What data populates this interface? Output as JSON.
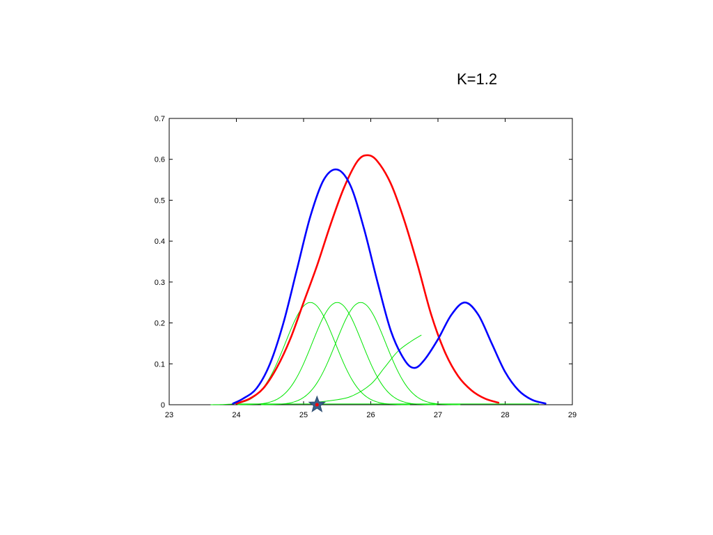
{
  "slide": {
    "title": "K=1.2"
  },
  "colors": {
    "red": "#ff0000",
    "blue": "#0000ff",
    "green": "#00e600",
    "star": "#3a5f8a",
    "axes": "#000000"
  },
  "chart_data": {
    "type": "line",
    "title": "",
    "xlabel": "",
    "ylabel": "",
    "xlim": [
      23,
      29
    ],
    "ylim": [
      0,
      0.7
    ],
    "grid": false,
    "x_ticks": [
      "23",
      "24",
      "25",
      "26",
      "27",
      "28",
      "29"
    ],
    "y_ticks": [
      "0",
      "0.1",
      "0.2",
      "0.3",
      "0.4",
      "0.5",
      "0.6",
      "0.7"
    ],
    "series": [
      {
        "color": "red",
        "stroke": "thick",
        "points": [
          [
            24.0,
            0.003
          ],
          [
            24.2,
            0.015
          ],
          [
            24.4,
            0.04
          ],
          [
            24.6,
            0.09
          ],
          [
            24.8,
            0.16
          ],
          [
            25.0,
            0.25
          ],
          [
            25.2,
            0.34
          ],
          [
            25.4,
            0.44
          ],
          [
            25.6,
            0.53
          ],
          [
            25.8,
            0.595
          ],
          [
            25.95,
            0.61
          ],
          [
            26.1,
            0.595
          ],
          [
            26.3,
            0.54
          ],
          [
            26.5,
            0.45
          ],
          [
            26.7,
            0.34
          ],
          [
            26.9,
            0.22
          ],
          [
            27.1,
            0.13
          ],
          [
            27.3,
            0.07
          ],
          [
            27.5,
            0.035
          ],
          [
            27.7,
            0.015
          ],
          [
            27.9,
            0.005
          ]
        ]
      },
      {
        "color": "blue",
        "stroke": "thick",
        "points": [
          [
            23.95,
            0.003
          ],
          [
            24.1,
            0.015
          ],
          [
            24.3,
            0.04
          ],
          [
            24.5,
            0.1
          ],
          [
            24.7,
            0.2
          ],
          [
            24.9,
            0.33
          ],
          [
            25.1,
            0.46
          ],
          [
            25.3,
            0.55
          ],
          [
            25.5,
            0.575
          ],
          [
            25.7,
            0.535
          ],
          [
            25.9,
            0.43
          ],
          [
            26.1,
            0.3
          ],
          [
            26.3,
            0.18
          ],
          [
            26.5,
            0.11
          ],
          [
            26.65,
            0.09
          ],
          [
            26.8,
            0.11
          ],
          [
            27.0,
            0.16
          ],
          [
            27.2,
            0.22
          ],
          [
            27.4,
            0.25
          ],
          [
            27.6,
            0.22
          ],
          [
            27.8,
            0.15
          ],
          [
            28.0,
            0.08
          ],
          [
            28.2,
            0.035
          ],
          [
            28.4,
            0.012
          ],
          [
            28.6,
            0.003
          ]
        ]
      },
      {
        "color": "green",
        "stroke": "thin",
        "gaussian": {
          "mean": 25.1,
          "sd": 0.37,
          "peak": 0.25
        }
      },
      {
        "color": "green",
        "stroke": "thin",
        "gaussian": {
          "mean": 25.5,
          "sd": 0.37,
          "peak": 0.25
        }
      },
      {
        "color": "green",
        "stroke": "thin",
        "gaussian": {
          "mean": 25.85,
          "sd": 0.37,
          "peak": 0.25
        }
      },
      {
        "color": "green",
        "stroke": "thin",
        "points": [
          [
            25.1,
            0.005
          ],
          [
            25.4,
            0.01
          ],
          [
            25.7,
            0.02
          ],
          [
            26.0,
            0.05
          ],
          [
            26.2,
            0.09
          ],
          [
            26.4,
            0.13
          ],
          [
            26.6,
            0.155
          ],
          [
            26.75,
            0.17
          ]
        ]
      },
      {
        "color": "green",
        "stroke": "thin",
        "baseline": true,
        "points": [
          [
            24.0,
            0.002
          ],
          [
            28.5,
            0.002
          ]
        ]
      }
    ],
    "markers": [
      {
        "shape": "star",
        "x": 25.2,
        "y": 0.0,
        "fill": "#3a5f8a",
        "center": "#ff0000"
      }
    ]
  }
}
